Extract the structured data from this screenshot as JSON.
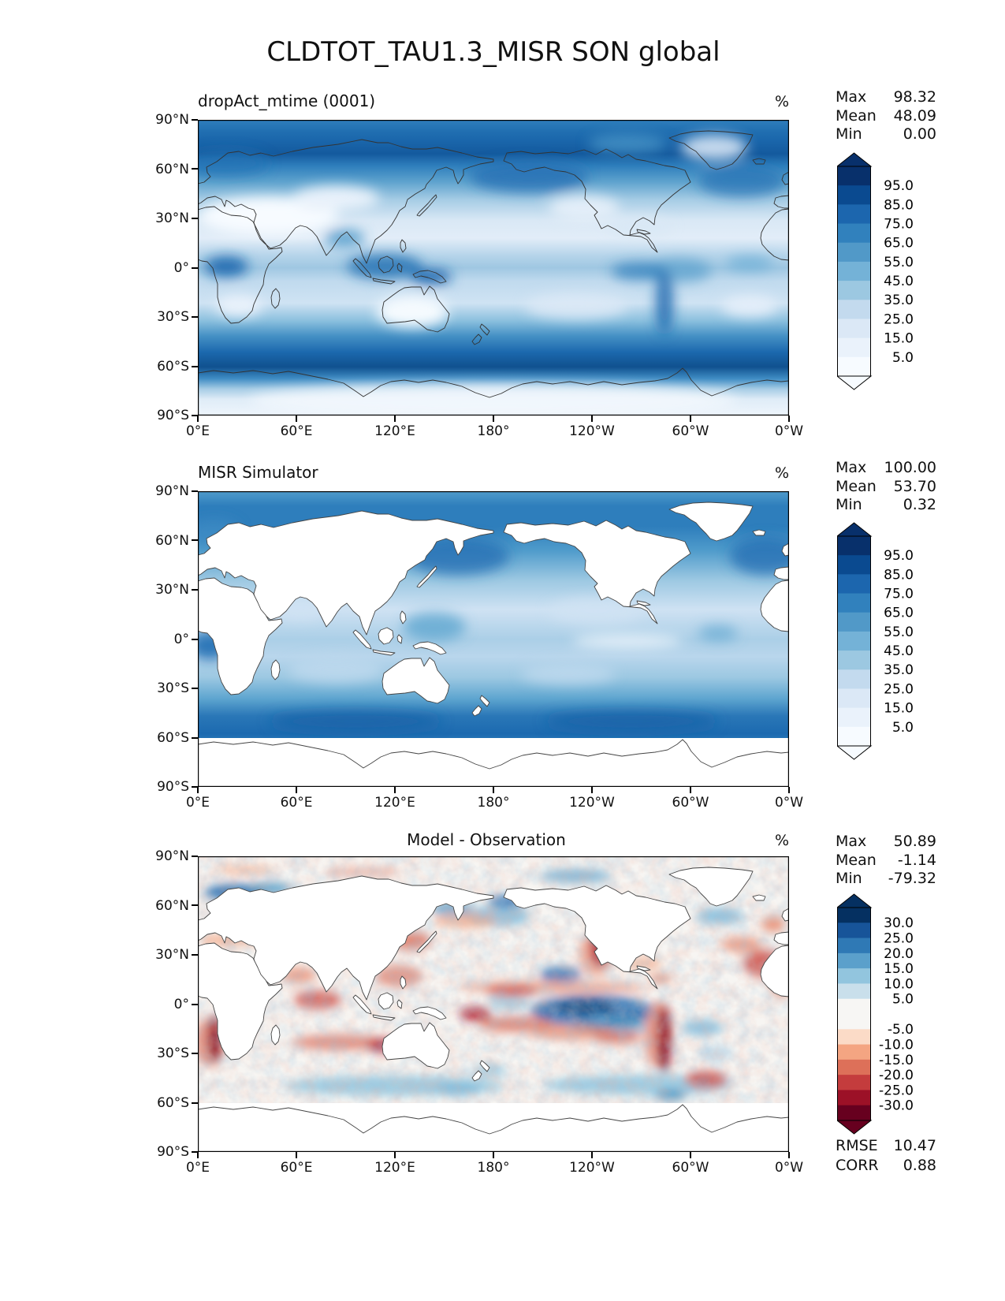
{
  "figure_title": "CLDTOT_TAU1.3_MISR SON global",
  "axes": {
    "x_ticks": [
      "0°E",
      "60°E",
      "120°E",
      "180°",
      "120°W",
      "60°W",
      "0°W"
    ],
    "y_ticks": [
      "90°N",
      "60°N",
      "30°N",
      "0°",
      "30°S",
      "60°S",
      "90°S"
    ]
  },
  "panels": [
    {
      "title": "dropAct_mtime (0001)",
      "units": "%",
      "stats": [
        [
          "Max",
          "98.32"
        ],
        [
          "Mean",
          "48.09"
        ],
        [
          "Min",
          "0.00"
        ]
      ],
      "colorbar": {
        "tick_labels": [
          "95.0",
          "85.0",
          "75.0",
          "65.0",
          "55.0",
          "45.0",
          "35.0",
          "25.0",
          "15.0",
          "5.0"
        ],
        "colors": [
          "#08306b",
          "#0a4a90",
          "#1c66ae",
          "#3181bd",
          "#5199c8",
          "#74b2d7",
          "#9cc8e1",
          "#c3daee",
          "#dbe8f6",
          "#eaf2fb",
          "#f7fbff"
        ],
        "arrow_top": "#08306b",
        "arrow_bottom": "#f7fbff"
      }
    },
    {
      "title": "MISR Simulator",
      "units": "%",
      "stats": [
        [
          "Max",
          "100.00"
        ],
        [
          "Mean",
          "53.70"
        ],
        [
          "Min",
          "0.32"
        ]
      ],
      "colorbar": {
        "tick_labels": [
          "95.0",
          "85.0",
          "75.0",
          "65.0",
          "55.0",
          "45.0",
          "35.0",
          "25.0",
          "15.0",
          "5.0"
        ],
        "colors": [
          "#08306b",
          "#0a4a90",
          "#1c66ae",
          "#3181bd",
          "#5199c8",
          "#74b2d7",
          "#9cc8e1",
          "#c3daee",
          "#dbe8f6",
          "#eaf2fb",
          "#f7fbff"
        ],
        "arrow_top": "#08306b",
        "arrow_bottom": "#f7fbff"
      }
    },
    {
      "title": "Model - Observation",
      "units": "%",
      "stats": [
        [
          "Max",
          "50.89"
        ],
        [
          "Mean",
          "-1.14"
        ],
        [
          "Min",
          "-79.32"
        ]
      ],
      "extra_stats": [
        [
          "RMSE",
          "10.47"
        ],
        [
          "CORR",
          "0.88"
        ]
      ],
      "colorbar": {
        "tick_labels": [
          "30.0",
          "25.0",
          "20.0",
          "15.0",
          "10.0",
          "5.0",
          "-5.0",
          "-10.0",
          "-15.0",
          "-20.0",
          "-25.0",
          "-30.0"
        ],
        "colors": [
          "#053061",
          "#175499",
          "#2f79b5",
          "#5ba0cb",
          "#92c5de",
          "#c9dfeb",
          "#f7f6f4",
          "#fbdbc7",
          "#f4a582",
          "#dd7059",
          "#c43c3d",
          "#9c1127",
          "#67001f"
        ],
        "band_heights": [
          1,
          1,
          1,
          1,
          1,
          1,
          2,
          1,
          1,
          1,
          1,
          1,
          1
        ],
        "arrow_top": "#053061",
        "arrow_bottom": "#67001f"
      }
    }
  ],
  "chart_data": [
    {
      "type": "heatmap",
      "title": "dropAct_mtime (0001)",
      "subtitle_of": "CLDTOT_TAU1.3_MISR SON global",
      "units": "%",
      "projection": "global lat-lon filled contour map, longitude 0-360E left to right",
      "x_range_deg_east": [
        0,
        360
      ],
      "y_range_deg_lat": [
        90,
        -90
      ],
      "colormap": "Blues",
      "contour_levels": [
        5,
        15,
        25,
        35,
        45,
        55,
        65,
        75,
        85,
        95
      ],
      "colorbar_extend": "both",
      "stats": {
        "max": 98.32,
        "mean": 48.09,
        "min": 0.0
      },
      "description": "Model total cloud fraction (tau>1.3): dark blue storm-track bands near 60N and 40-60S, light subtropical/desert minima, moderate ITCZ band."
    },
    {
      "type": "heatmap",
      "title": "MISR Simulator",
      "units": "%",
      "projection": "global lat-lon filled contour map, longitude 0-360E left to right",
      "x_range_deg_east": [
        0,
        360
      ],
      "y_range_deg_lat": [
        90,
        -90
      ],
      "colormap": "Blues",
      "contour_levels": [
        5,
        15,
        25,
        35,
        45,
        55,
        65,
        75,
        85,
        95
      ],
      "colorbar_extend": "both",
      "stats": {
        "max": 100.0,
        "mean": 53.7,
        "min": 0.32
      },
      "description": "MISR satellite-simulator cloud fraction, ocean only; land and poleward of ~60S masked white; dark Southern Ocean band."
    },
    {
      "type": "heatmap",
      "title": "Model - Observation",
      "units": "%",
      "projection": "global lat-lon filled contour map, longitude 0-360E left to right",
      "x_range_deg_east": [
        0,
        360
      ],
      "y_range_deg_lat": [
        90,
        -90
      ],
      "colormap": "RdBu",
      "contour_levels": [
        -30,
        -25,
        -20,
        -15,
        -10,
        -5,
        5,
        10,
        15,
        20,
        25,
        30
      ],
      "colorbar_extend": "both",
      "stats": {
        "max": 50.89,
        "mean": -1.14,
        "min": -79.32,
        "rmse": 10.47,
        "corr": 0.88
      },
      "description": "Difference map: blue positive bias over equatorial central Pacific, red negative bias along Peru/Chile, Namibia and Baja stratocumulus coasts and subtropical 30S band."
    }
  ]
}
